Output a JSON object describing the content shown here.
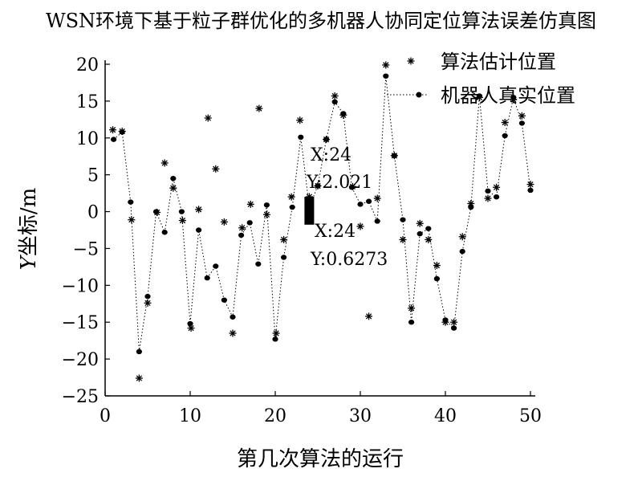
{
  "chart_data": {
    "type": "scatter",
    "title": "WSN环境下基于粒子群优化的多机器人协同定位算法误差仿真图",
    "xlabel": "第几次算法的运行",
    "ylabel_italic": "Y",
    "ylabel_rest": "坐标/m",
    "xlim": [
      0,
      50
    ],
    "ylim": [
      -25,
      20
    ],
    "xticks": [
      "0",
      "10",
      "20",
      "30",
      "40",
      "50"
    ],
    "xtick_values": [
      0,
      10,
      20,
      30,
      40,
      50
    ],
    "yticks": [
      "20",
      "15",
      "10",
      "5",
      "0",
      "-5",
      "-10",
      "-15",
      "-20",
      "-25"
    ],
    "ytick_values": [
      20,
      15,
      10,
      5,
      0,
      -5,
      -10,
      -15,
      -20,
      -25
    ],
    "grid": false,
    "legend_position": "top-right",
    "series": [
      {
        "name": "算法估计位置",
        "marker": "asterisk",
        "line": "none",
        "x": [
          0.9,
          2.0,
          3.1,
          4.0,
          5.0,
          6.1,
          7.0,
          8.0,
          9.1,
          10.1,
          11.0,
          12.1,
          13.0,
          14.0,
          15.0,
          16.1,
          17.1,
          18.1,
          19.0,
          20.1,
          21.0,
          21.9,
          22.9,
          24.0,
          25.0,
          26.0,
          27.0,
          28.0,
          29.1,
          30.0,
          31.0,
          32.0,
          33.0,
          34.0,
          35.0,
          36.0,
          37.0,
          38.0,
          39.0,
          40.0,
          41.0,
          42.0,
          43.0,
          44.0,
          45.0,
          46.0,
          47.0,
          48.0,
          49.0,
          50.0
        ],
        "y": [
          11.1,
          10.9,
          -1.1,
          -22.6,
          -12.4,
          -0.1,
          6.6,
          3.2,
          -1.2,
          -15.8,
          0.3,
          12.7,
          5.8,
          -1.4,
          -16.5,
          -2.2,
          1.0,
          14.0,
          -0.4,
          -16.5,
          -3.8,
          2.0,
          12.4,
          2.021,
          3.5,
          9.8,
          15.7,
          13.1,
          3.4,
          -2.0,
          -14.2,
          1.8,
          19.9,
          7.6,
          -3.8,
          -13.1,
          -1.6,
          -3.8,
          -7.3,
          -15.0,
          -15.0,
          -3.4,
          1.1,
          15.5,
          1.8,
          3.3,
          12.1,
          15.2,
          13.0,
          3.7
        ]
      },
      {
        "name": "机器人真实位置",
        "marker": "dot",
        "line": "dotted",
        "x": [
          1.0,
          2.0,
          3.0,
          4.0,
          5.0,
          6.0,
          7.0,
          8.0,
          9.0,
          10.0,
          11.0,
          12.0,
          13.0,
          14.0,
          15.0,
          16.0,
          17.0,
          18.0,
          19.0,
          20.0,
          21.0,
          22.0,
          23.0,
          24.0,
          25.0,
          26.0,
          27.0,
          28.0,
          29.0,
          30.0,
          31.0,
          32.0,
          33.0,
          34.0,
          35.0,
          36.0,
          37.0,
          38.0,
          39.0,
          40.0,
          41.0,
          42.0,
          43.0,
          44.0,
          45.0,
          46.0,
          47.0,
          48.0,
          49.0,
          50.0
        ],
        "y": [
          9.8,
          10.8,
          1.3,
          -19.0,
          -11.5,
          0.0,
          -2.8,
          4.5,
          0.0,
          -15.2,
          -2.5,
          -9.0,
          -7.4,
          -12.0,
          -14.3,
          -3.2,
          -1.5,
          -7.1,
          0.9,
          -17.3,
          -6.2,
          0.6,
          10.1,
          0.6273,
          3.5,
          9.8,
          14.9,
          13.3,
          3.3,
          1.0,
          1.4,
          -1.3,
          18.4,
          7.6,
          -1.1,
          -15.0,
          -3.0,
          -2.3,
          -9.1,
          -14.7,
          -15.8,
          -5.4,
          0.6,
          15.7,
          2.8,
          2.0,
          10.3,
          15.5,
          12.0,
          2.9
        ]
      }
    ],
    "annotations": [
      {
        "x_text": "X:24",
        "y_text": "Y:2.021",
        "x": 24,
        "y": 2.021
      },
      {
        "x_text": "X:24",
        "y_text": "Y:0.6273",
        "x": 24,
        "y": 0.6273
      }
    ]
  }
}
